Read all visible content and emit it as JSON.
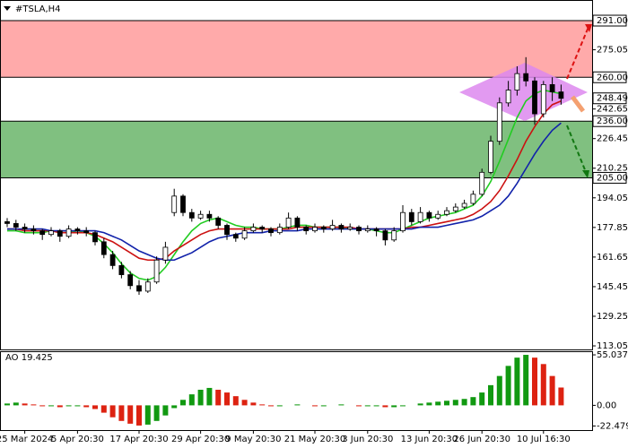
{
  "chart_data": [
    {
      "type": "candlestick",
      "title": "#TSLA,H4",
      "categories": [
        null,
        null,
        "25 Mar 2024",
        null,
        null,
        null,
        null,
        null,
        "5 Apr 20:30",
        null,
        null,
        null,
        null,
        null,
        null,
        "17 Apr 20:30",
        null,
        null,
        null,
        null,
        null,
        null,
        "29 Apr 20:30",
        null,
        null,
        null,
        null,
        null,
        "9 May 20:30",
        null,
        null,
        null,
        null,
        null,
        null,
        "21 May 20:30",
        null,
        null,
        null,
        null,
        null,
        "3 Jun 20:30",
        null,
        null,
        null,
        null,
        null,
        null,
        "13 Jun 20:30",
        null,
        null,
        null,
        null,
        null,
        "26 Jun 20:30",
        null,
        null,
        null,
        null,
        null,
        null,
        "10 Jul 16:30",
        null,
        null
      ],
      "open": [
        181,
        180,
        178,
        177,
        176,
        174,
        176,
        173,
        177,
        176,
        175,
        170,
        163,
        157,
        152,
        146,
        143,
        148,
        160,
        186,
        195,
        186,
        183,
        185,
        183,
        179,
        174,
        172,
        176,
        178,
        177,
        175,
        178,
        183,
        178,
        176,
        178,
        177,
        179,
        177,
        178,
        176,
        177,
        176,
        171,
        176,
        186,
        181,
        186,
        183,
        185,
        187,
        189,
        191,
        196,
        208,
        225,
        246,
        253,
        262,
        258,
        240,
        256,
        252
      ],
      "high": [
        183,
        182,
        180,
        179,
        177,
        178,
        177,
        179,
        178,
        178,
        176,
        172,
        165,
        159,
        154,
        149,
        150,
        162,
        170,
        199,
        196,
        188,
        187,
        187,
        184,
        180,
        175,
        178,
        180,
        179,
        178,
        180,
        186,
        184,
        179,
        180,
        179,
        182,
        180,
        180,
        179,
        179,
        178,
        177,
        178,
        190,
        188,
        189,
        187,
        187,
        189,
        191,
        193,
        198,
        210,
        228,
        249,
        258,
        266,
        271,
        260,
        258,
        260,
        256
      ],
      "low": [
        178,
        176,
        175,
        174,
        171,
        173,
        170,
        172,
        174,
        173,
        168,
        161,
        155,
        150,
        144,
        141,
        142,
        147,
        158,
        184,
        184,
        181,
        182,
        181,
        177,
        171,
        170,
        171,
        175,
        175,
        173,
        174,
        177,
        176,
        174,
        175,
        175,
        176,
        175,
        176,
        174,
        175,
        173,
        168,
        170,
        175,
        179,
        180,
        181,
        182,
        184,
        186,
        188,
        190,
        195,
        207,
        223,
        244,
        250,
        255,
        234,
        238,
        247,
        245
      ],
      "close": [
        180,
        178,
        177,
        176,
        174,
        176,
        173,
        177,
        176,
        175,
        170,
        163,
        157,
        152,
        146,
        143,
        148,
        160,
        167,
        195,
        186,
        183,
        185,
        183,
        179,
        174,
        172,
        176,
        178,
        177,
        175,
        178,
        183,
        178,
        176,
        178,
        177,
        179,
        177,
        178,
        176,
        177,
        176,
        171,
        176,
        186,
        181,
        186,
        183,
        185,
        187,
        189,
        191,
        196,
        208,
        225,
        246,
        253,
        262,
        258,
        240,
        256,
        252,
        248.49
      ],
      "up_color": "#ffffff",
      "down_color": "#000000",
      "lines": [
        {
          "color": "#22cc22",
          "values": [
            176,
            176,
            175,
            175,
            175,
            176,
            175,
            175,
            176,
            175,
            173,
            169,
            164,
            158,
            153,
            150,
            149,
            151,
            156,
            163,
            170,
            176,
            180,
            182,
            183,
            181,
            179,
            178,
            178,
            177,
            177,
            177,
            178,
            179,
            179,
            178,
            178,
            178,
            178,
            177,
            177,
            177,
            176,
            175,
            175,
            177,
            179,
            181,
            183,
            184,
            185,
            186,
            188,
            190,
            195,
            203,
            214,
            226,
            238,
            247,
            251,
            253,
            252,
            251
          ]
        },
        {
          "color": "#cc1111",
          "values": [
            177,
            177,
            176,
            176,
            176,
            176,
            175,
            175,
            175,
            175,
            174,
            172,
            170,
            167,
            164,
            161,
            160,
            160,
            161,
            165,
            168,
            171,
            174,
            176,
            177,
            177,
            177,
            177,
            177,
            177,
            177,
            177,
            177,
            178,
            178,
            178,
            178,
            178,
            178,
            178,
            177,
            177,
            177,
            177,
            177,
            177,
            178,
            178,
            179,
            180,
            181,
            182,
            183,
            185,
            188,
            192,
            198,
            206,
            215,
            225,
            233,
            240,
            245,
            247
          ]
        },
        {
          "color": "#1122aa",
          "values": [
            177,
            177,
            177,
            177,
            177,
            176,
            176,
            176,
            176,
            176,
            176,
            175,
            173,
            171,
            168,
            165,
            163,
            161,
            160,
            160,
            162,
            164,
            167,
            170,
            172,
            173,
            174,
            175,
            175,
            175,
            176,
            176,
            176,
            176,
            177,
            177,
            177,
            177,
            177,
            177,
            177,
            177,
            177,
            177,
            177,
            177,
            177,
            178,
            178,
            178,
            179,
            180,
            181,
            182,
            184,
            187,
            190,
            195,
            202,
            210,
            218,
            225,
            231,
            235
          ]
        }
      ],
      "zones": [
        {
          "from": 260,
          "to": 291,
          "color": "#ffaaaa"
        },
        {
          "from": 205,
          "to": 236,
          "color": "#80c080"
        }
      ],
      "ylim": [
        111.1,
        301.3
      ],
      "yticks": [
        {
          "value": 291,
          "label": "291.00"
        },
        {
          "value": 275.05,
          "label": "275.05"
        },
        {
          "value": 260,
          "label": "260.00"
        },
        248.49,
        {
          "value": 242.65,
          "label": "242.65"
        },
        {
          "value": 236,
          "label": "236.00"
        },
        226.45,
        210.25,
        {
          "value": 205,
          "label": "205.00"
        },
        194.05,
        177.85,
        161.65,
        145.45,
        129.25,
        113.05
      ]
    },
    {
      "type": "bar",
      "title": "AO 19.425",
      "values": [
        2,
        3,
        2,
        1,
        -1,
        -1,
        -2,
        -1,
        -1,
        -2,
        -4,
        -8,
        -13,
        -17,
        -20,
        -22,
        -21,
        -17,
        -11,
        -3,
        6,
        12,
        17,
        19,
        17,
        14,
        10,
        6,
        3,
        1,
        -1,
        -1,
        0,
        1,
        0,
        -1,
        -1,
        0,
        1,
        0,
        -1,
        -1,
        -1,
        -2,
        -2,
        -1,
        0,
        2,
        3,
        4,
        5,
        6,
        7,
        9,
        14,
        22,
        32,
        43,
        52,
        55.037,
        52,
        45,
        32,
        19.425
      ],
      "up_color": "#119911",
      "down_color": "#dd2211",
      "ylim": [
        -25,
        58
      ],
      "yticks": [
        55.037,
        {
          "value": 0,
          "label": "0.00"
        },
        -22.479
      ]
    }
  ]
}
